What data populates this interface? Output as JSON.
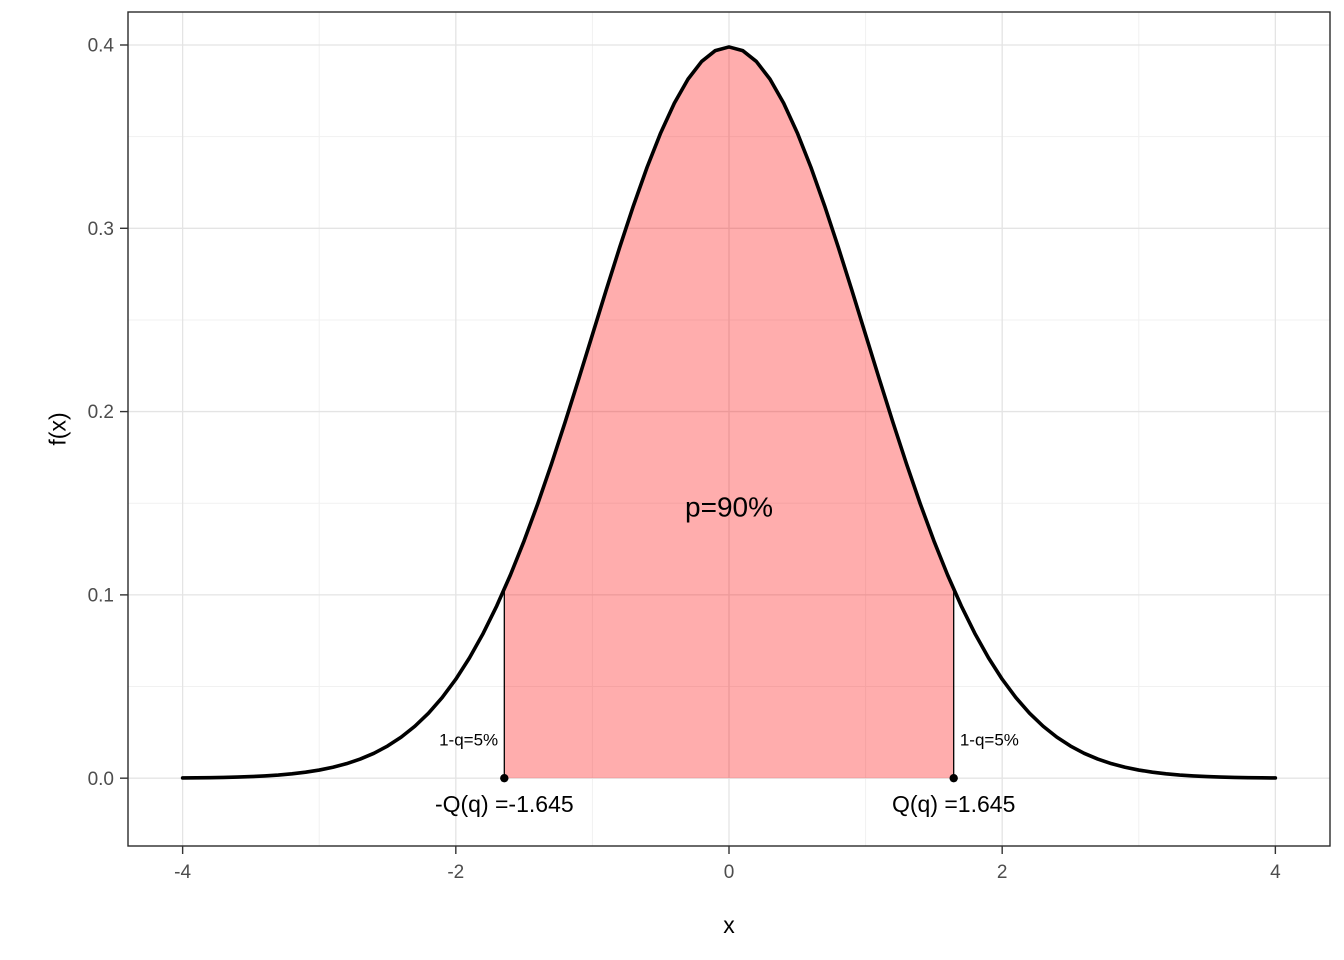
{
  "chart_data": {
    "type": "area",
    "xlabel": "x",
    "ylabel": "f(x)",
    "xlim": [
      -4,
      4
    ],
    "ylim": [
      0,
      0.4
    ],
    "grid": true,
    "legend": "none",
    "x_ticks": {
      "values": [
        -4,
        -2,
        0,
        2,
        4
      ],
      "labels": [
        "-4",
        "-2",
        "0",
        "2",
        "4"
      ]
    },
    "y_ticks": {
      "values": [
        0,
        0.1,
        0.2,
        0.3,
        0.4
      ],
      "labels": [
        "0.0",
        "0.1",
        "0.2",
        "0.3",
        "0.4"
      ]
    },
    "x_minor": [
      -3,
      -1,
      1,
      3
    ],
    "y_minor": [
      0.05,
      0.15,
      0.25,
      0.35
    ],
    "curve": {
      "name": "standard-normal-density",
      "x": [
        -4,
        -3.9,
        -3.8,
        -3.7,
        -3.6,
        -3.5,
        -3.4,
        -3.3,
        -3.2,
        -3.1,
        -3,
        -2.9,
        -2.8,
        -2.7,
        -2.6,
        -2.5,
        -2.4,
        -2.3,
        -2.2,
        -2.1,
        -2,
        -1.9,
        -1.8,
        -1.7,
        -1.6,
        -1.5,
        -1.4,
        -1.3,
        -1.2,
        -1.1,
        -1,
        -0.9,
        -0.8,
        -0.7,
        -0.6,
        -0.5,
        -0.4,
        -0.3,
        -0.2,
        -0.1,
        0,
        0.1,
        0.2,
        0.3,
        0.4,
        0.5,
        0.6,
        0.7,
        0.8,
        0.9,
        1,
        1.1,
        1.2,
        1.3,
        1.4,
        1.5,
        1.6,
        1.7,
        1.8,
        1.9,
        2,
        2.1,
        2.2,
        2.3,
        2.4,
        2.5,
        2.6,
        2.7,
        2.8,
        2.9,
        3,
        3.1,
        3.2,
        3.3,
        3.4,
        3.5,
        3.6,
        3.7,
        3.8,
        3.9,
        4
      ],
      "y": [
        0.00013,
        0.0002,
        0.00029,
        0.00042,
        0.00061,
        0.00087,
        0.00123,
        0.00172,
        0.00238,
        0.00327,
        0.00443,
        0.00595,
        0.00792,
        0.01042,
        0.01358,
        0.01753,
        0.02239,
        0.02833,
        0.03547,
        0.04398,
        0.05399,
        0.06562,
        0.07895,
        0.09405,
        0.11092,
        0.12952,
        0.14973,
        0.17137,
        0.19419,
        0.21785,
        0.24197,
        0.26609,
        0.28969,
        0.31225,
        0.33322,
        0.35207,
        0.36827,
        0.38139,
        0.39104,
        0.39695,
        0.39894,
        0.39695,
        0.39104,
        0.38139,
        0.36827,
        0.35207,
        0.33322,
        0.31225,
        0.28969,
        0.26609,
        0.24197,
        0.21785,
        0.19419,
        0.17137,
        0.14973,
        0.12952,
        0.11092,
        0.09405,
        0.07895,
        0.06562,
        0.05399,
        0.04398,
        0.03547,
        0.02833,
        0.02239,
        0.01753,
        0.01358,
        0.01042,
        0.00792,
        0.00595,
        0.00443,
        0.00327,
        0.00238,
        0.00172,
        0.00123,
        0.00087,
        0.00061,
        0.00042,
        0.00029,
        0.0002,
        0.00013
      ]
    },
    "shaded_region": {
      "from": -1.645,
      "to": 1.645,
      "fill": "#FF000052"
    },
    "segments": [
      {
        "x": -1.645,
        "y0": 0,
        "y1": 0.1033
      },
      {
        "x": 1.645,
        "y0": 0,
        "y1": 0.1033
      }
    ],
    "points": [
      {
        "x": -1.645,
        "y": 0
      },
      {
        "x": 1.645,
        "y": 0
      }
    ],
    "annotations": [
      {
        "text": "p=90%",
        "x": 0,
        "y": 0.148,
        "align": "center",
        "size": 28,
        "color": "#000000"
      },
      {
        "text": "1-q=5%",
        "x": -1.69,
        "y": 0.021,
        "align": "right",
        "size": 17,
        "color": "#000000"
      },
      {
        "text": "1-q=5%",
        "x": 1.69,
        "y": 0.021,
        "align": "left",
        "size": 17,
        "color": "#000000"
      },
      {
        "text": "-Q(q) =-1.645",
        "x": -1.645,
        "y": -0.014,
        "align": "center",
        "size": 23,
        "color": "#000000"
      },
      {
        "text": "Q(q) =1.645",
        "x": 1.645,
        "y": -0.014,
        "align": "center",
        "size": 23,
        "color": "#000000"
      }
    ],
    "colors": {
      "curve": "#000000",
      "grid_major": "#E4E4E4",
      "grid_minor": "#F1F1F1",
      "panel_border": "#2B2B2B",
      "tick_mark": "#333333",
      "tick_label": "#4D4D4D",
      "axis_title": "#000000",
      "point": "#000000",
      "segment": "#000000",
      "background": "#FFFFFF"
    }
  }
}
